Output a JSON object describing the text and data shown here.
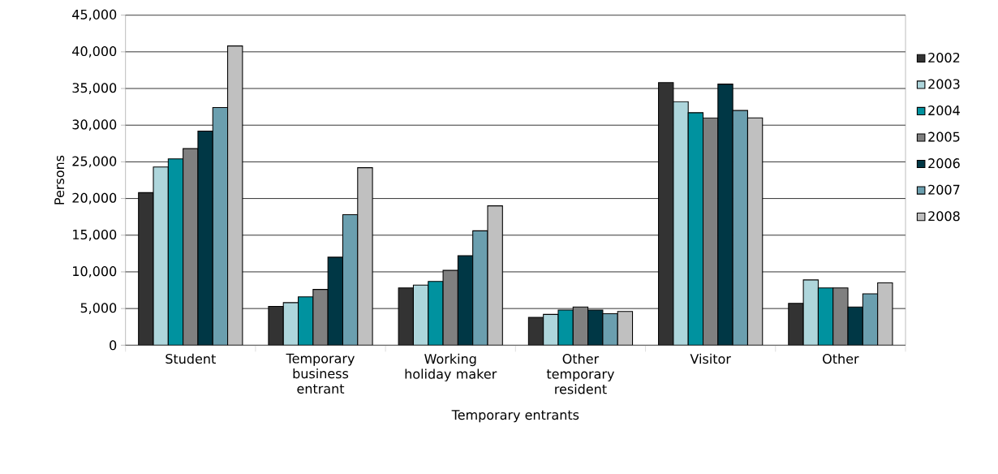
{
  "chart_data": {
    "type": "bar",
    "xlabel": "Temporary entrants",
    "ylabel": "Persons",
    "categories": [
      "Student",
      "Temporary business entrant",
      "Working holiday maker",
      "Other temporary resident",
      "Visitor",
      "Other"
    ],
    "series": [
      {
        "name": "2002",
        "color": "#333333",
        "values": [
          20800,
          5300,
          7800,
          3800,
          35800,
          5700
        ]
      },
      {
        "name": "2003",
        "color": "#aed6dc",
        "values": [
          24300,
          5800,
          8200,
          4200,
          33200,
          8900
        ]
      },
      {
        "name": "2004",
        "color": "#00929f",
        "values": [
          25400,
          6600,
          8700,
          4800,
          31700,
          7800
        ]
      },
      {
        "name": "2005",
        "color": "#808080",
        "values": [
          26800,
          7600,
          10200,
          5200,
          31000,
          7800
        ]
      },
      {
        "name": "2006",
        "color": "#003745",
        "values": [
          29200,
          12000,
          12200,
          4800,
          35600,
          5200
        ]
      },
      {
        "name": "2007",
        "color": "#6b9faf",
        "values": [
          32400,
          17800,
          15600,
          4300,
          32000,
          7000
        ]
      },
      {
        "name": "2008",
        "color": "#c0c0c0",
        "values": [
          40800,
          24200,
          19000,
          4600,
          31000,
          8500
        ]
      }
    ],
    "ylim": [
      0,
      45000
    ],
    "yticks": [
      0,
      {
        "value": 5000,
        "label": "5,000"
      },
      {
        "value": 10000,
        "label": "10,000"
      },
      {
        "value": 15000,
        "label": "15,000"
      },
      {
        "value": 20000,
        "label": "20,000"
      },
      {
        "value": 25000,
        "label": "25,000"
      },
      {
        "value": 30000,
        "label": "30,000"
      },
      {
        "value": 35000,
        "label": "35,000"
      },
      {
        "value": 40000,
        "label": "40,000"
      },
      {
        "value": 45000,
        "label": "45,000"
      }
    ],
    "grid": "y",
    "legend": "right"
  }
}
